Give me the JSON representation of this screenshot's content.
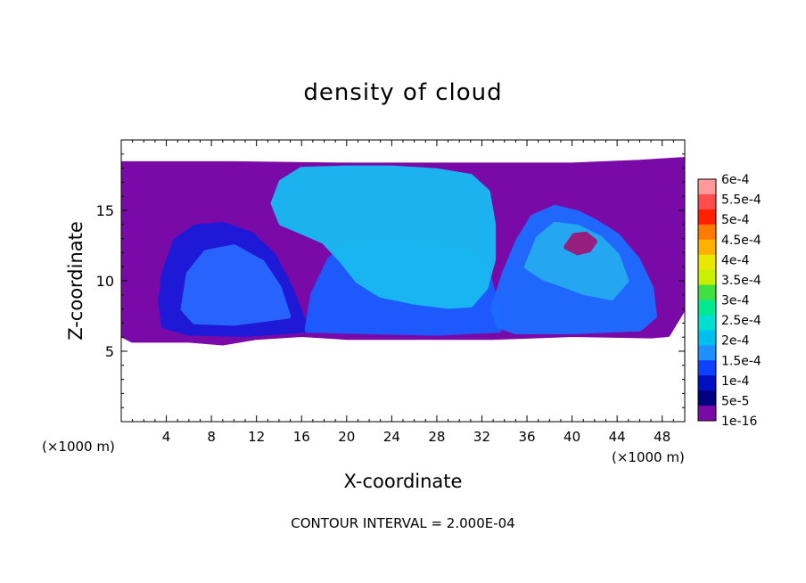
{
  "chart_data": {
    "type": "heatmap",
    "title": "density of cloud",
    "xlabel": "X-coordinate",
    "ylabel": "Z-coordinate",
    "x_unit_note": "(×1000 m)",
    "y_unit_note": "(×1000 m)",
    "footer": "CONTOUR INTERVAL = 2.000E-04",
    "xlim": [
      0,
      50
    ],
    "ylim": [
      0,
      20
    ],
    "x_ticks": [
      4,
      8,
      12,
      16,
      20,
      24,
      28,
      32,
      36,
      40,
      44,
      48
    ],
    "y_ticks": [
      5,
      10,
      15
    ],
    "grid": false,
    "colorbar": {
      "labels": [
        "6e-4",
        "5.5e-4",
        "5e-4",
        "4.5e-4",
        "4e-4",
        "3.5e-4",
        "3e-4",
        "2.5e-4",
        "2e-4",
        "1.5e-4",
        "1e-4",
        "5e-5",
        "1e-16"
      ],
      "colors": [
        "#ff9a9a",
        "#ff4d4d",
        "#ff2000",
        "#ff7a00",
        "#ffb000",
        "#e8e800",
        "#c8f000",
        "#40e040",
        "#00e890",
        "#00e0d0",
        "#00c0f0",
        "#2090ff",
        "#1040ff",
        "#0010c0",
        "#000080",
        "#7a0aa8"
      ]
    },
    "regions": [
      {
        "name": "background",
        "level": "1e-16",
        "color": "#7a0aa8",
        "outline": [
          [
            0,
            18.3
          ],
          [
            10,
            18.3
          ],
          [
            20,
            18.2
          ],
          [
            30,
            18.2
          ],
          [
            40,
            18.2
          ],
          [
            46,
            18.4
          ],
          [
            50,
            18.6
          ],
          [
            50,
            8.2
          ],
          [
            48.5,
            6.2
          ],
          [
            47,
            6.1
          ],
          [
            40,
            6.2
          ],
          [
            33,
            6.0
          ],
          [
            25,
            6.0
          ],
          [
            20,
            6.0
          ],
          [
            16,
            6.2
          ],
          [
            12,
            6.0
          ],
          [
            9,
            5.6
          ],
          [
            6,
            5.8
          ],
          [
            1,
            5.8
          ],
          [
            0,
            6.2
          ]
        ]
      },
      {
        "name": "left-cell",
        "level": "5e-5",
        "color": "#1a1ad8",
        "outline": [
          [
            3.5,
            8.5
          ],
          [
            3.8,
            10.5
          ],
          [
            4.8,
            12.8
          ],
          [
            6.5,
            13.8
          ],
          [
            9,
            14
          ],
          [
            11.5,
            13.3
          ],
          [
            13.5,
            11.8
          ],
          [
            15,
            9.5
          ],
          [
            16,
            7.5
          ],
          [
            16.4,
            6.5
          ],
          [
            11,
            6.2
          ],
          [
            6,
            6.3
          ],
          [
            3.8,
            6.8
          ]
        ]
      },
      {
        "name": "left-cell-core",
        "level": "1e-4",
        "color": "#2a66ff",
        "outline": [
          [
            5.5,
            8
          ],
          [
            6,
            10.5
          ],
          [
            7.5,
            12
          ],
          [
            10,
            12.4
          ],
          [
            12.5,
            11.3
          ],
          [
            14,
            9.5
          ],
          [
            14.8,
            7.5
          ],
          [
            10,
            7
          ],
          [
            6.5,
            7.1
          ]
        ]
      },
      {
        "name": "main-cloud-base",
        "level": "1e-4",
        "color": "#1a5cff",
        "outline": [
          [
            16.5,
            6.5
          ],
          [
            17,
            9
          ],
          [
            18.5,
            11.5
          ],
          [
            20,
            12.5
          ],
          [
            24,
            12.8
          ],
          [
            28,
            12.6
          ],
          [
            31,
            12.0
          ],
          [
            32.5,
            10.5
          ],
          [
            33.2,
            8.5
          ],
          [
            33.5,
            6.5
          ],
          [
            28,
            6.3
          ],
          [
            22,
            6.4
          ]
        ]
      },
      {
        "name": "main-cloud",
        "level": "1.5e-4",
        "color": "#18b8f2",
        "outline": [
          [
            13.5,
            15.5
          ],
          [
            14.2,
            17.0
          ],
          [
            16,
            17.9
          ],
          [
            20,
            18.0
          ],
          [
            24,
            18.0
          ],
          [
            28,
            17.8
          ],
          [
            31,
            17.4
          ],
          [
            32.5,
            16.3
          ],
          [
            33,
            14
          ],
          [
            33,
            11.5
          ],
          [
            32.3,
            9.5
          ],
          [
            31,
            8.3
          ],
          [
            29,
            8.2
          ],
          [
            26,
            8.5
          ],
          [
            23,
            9
          ],
          [
            21,
            10
          ],
          [
            19.5,
            11.5
          ],
          [
            18,
            12.8
          ],
          [
            16,
            13.5
          ],
          [
            14.2,
            14.1
          ]
        ]
      },
      {
        "name": "right-cell",
        "level": "1e-4",
        "color": "#1e6cff",
        "outline": [
          [
            33,
            8
          ],
          [
            34,
            10.5
          ],
          [
            35.2,
            12.8
          ],
          [
            36.5,
            14.5
          ],
          [
            38.5,
            15.2
          ],
          [
            40.5,
            14.8
          ],
          [
            42,
            14.2
          ],
          [
            44,
            13.2
          ],
          [
            45.8,
            11.5
          ],
          [
            47,
            9.5
          ],
          [
            47.3,
            7.5
          ],
          [
            46,
            6.6
          ],
          [
            40,
            6.4
          ],
          [
            35,
            6.4
          ],
          [
            33.5,
            6.8
          ]
        ]
      },
      {
        "name": "right-cell-core",
        "level": "1.5e-4",
        "color": "#25a8f0",
        "outline": [
          [
            36,
            11
          ],
          [
            37,
            13
          ],
          [
            38.5,
            14
          ],
          [
            40.5,
            13.8
          ],
          [
            42.5,
            13
          ],
          [
            44,
            11.8
          ],
          [
            44.8,
            10
          ],
          [
            43.5,
            8.8
          ],
          [
            41,
            9.2
          ],
          [
            39,
            9.8
          ],
          [
            37.5,
            10.2
          ]
        ]
      },
      {
        "name": "right-vortex",
        "level": "1e-16",
        "color": "#9a1a7a",
        "outline": [
          [
            39.5,
            12.4
          ],
          [
            40.5,
            12.0
          ],
          [
            41.5,
            12.2
          ],
          [
            42,
            12.8
          ],
          [
            41.2,
            13.3
          ],
          [
            40.2,
            13.2
          ]
        ]
      }
    ]
  }
}
